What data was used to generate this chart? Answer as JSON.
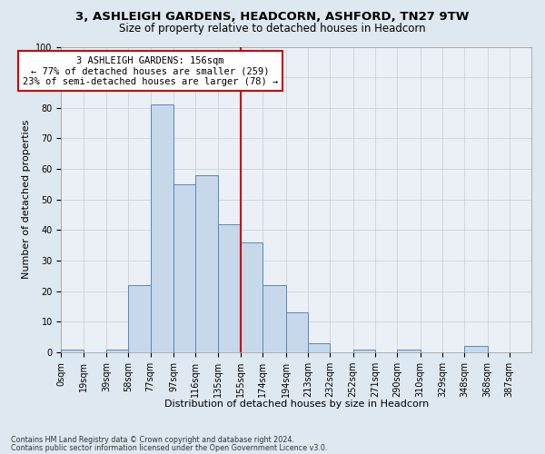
{
  "title1": "3, ASHLEIGH GARDENS, HEADCORN, ASHFORD, TN27 9TW",
  "title2": "Size of property relative to detached houses in Headcorn",
  "xlabel": "Distribution of detached houses by size in Headcorn",
  "ylabel": "Number of detached properties",
  "footer1": "Contains HM Land Registry data © Crown copyright and database right 2024.",
  "footer2": "Contains public sector information licensed under the Open Government Licence v3.0.",
  "bin_labels": [
    "0sqm",
    "19sqm",
    "39sqm",
    "58sqm",
    "77sqm",
    "97sqm",
    "116sqm",
    "135sqm",
    "155sqm",
    "174sqm",
    "194sqm",
    "213sqm",
    "232sqm",
    "252sqm",
    "271sqm",
    "290sqm",
    "310sqm",
    "329sqm",
    "348sqm",
    "368sqm",
    "387sqm"
  ],
  "bin_edges": [
    0,
    19,
    39,
    58,
    77,
    97,
    116,
    135,
    155,
    174,
    194,
    213,
    232,
    252,
    271,
    290,
    310,
    329,
    348,
    368,
    387
  ],
  "bar_heights": [
    1,
    0,
    1,
    22,
    81,
    55,
    58,
    42,
    36,
    22,
    13,
    3,
    0,
    1,
    0,
    1,
    0,
    0,
    2,
    0
  ],
  "bar_color": "#c8d8eb",
  "bar_edge_color": "#5588bb",
  "vline_x": 155,
  "vline_color": "#cc0000",
  "annotation_text": "3 ASHLEIGH GARDENS: 156sqm\n← 77% of detached houses are smaller (259)\n23% of semi-detached houses are larger (78) →",
  "annotation_box_facecolor": "#ffffff",
  "annotation_box_edgecolor": "#cc0000",
  "ylim": [
    0,
    100
  ],
  "yticks": [
    0,
    10,
    20,
    30,
    40,
    50,
    60,
    70,
    80,
    90,
    100
  ],
  "grid_color": "#cccccc",
  "bg_color": "#dde8f0",
  "plot_bg_color": "#eaf0f6",
  "title1_fontsize": 9.5,
  "title2_fontsize": 8.5,
  "ylabel_fontsize": 8,
  "xlabel_fontsize": 8,
  "tick_fontsize": 7,
  "footer_fontsize": 5.8,
  "ann_fontsize": 7.5
}
